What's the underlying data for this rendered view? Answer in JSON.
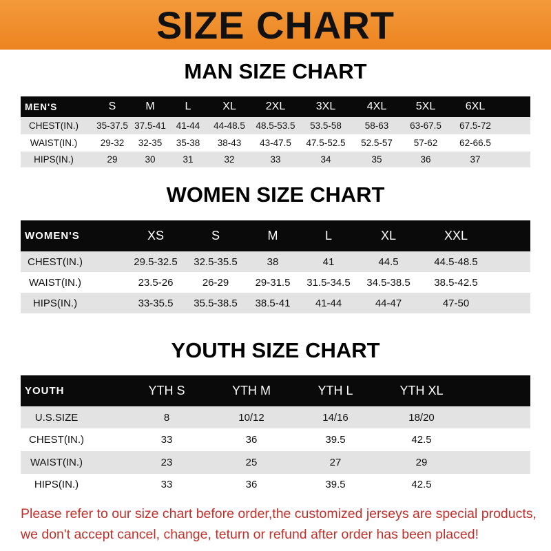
{
  "banner": {
    "title": "SIZE CHART",
    "color": "#ec8420"
  },
  "men": {
    "title": "MAN SIZE CHART",
    "header": [
      "MEN'S",
      "S",
      "M",
      "L",
      "XL",
      "2XL",
      "3XL",
      "4XL",
      "5XL",
      "6XL"
    ],
    "rows": [
      [
        "CHEST(IN.)",
        "35-37.5",
        "37.5-41",
        "41-44",
        "44-48.5",
        "48.5-53.5",
        "53.5-58",
        "58-63",
        "63-67.5",
        "67.5-72"
      ],
      [
        "WAIST(IN.)",
        "29-32",
        "32-35",
        "35-38",
        "38-43",
        "43-47.5",
        "47.5-52.5",
        "52.5-57",
        "57-62",
        "62-66.5"
      ],
      [
        "HIPS(IN.)",
        "29",
        "30",
        "31",
        "32",
        "33",
        "34",
        "35",
        "36",
        "37"
      ]
    ]
  },
  "women": {
    "title": "WOMEN SIZE CHART",
    "header": [
      "WOMEN'S",
      "XS",
      "S",
      "M",
      "L",
      "XL",
      "XXL"
    ],
    "rows": [
      [
        "CHEST(IN.)",
        "29.5-32.5",
        "32.5-35.5",
        "38",
        "41",
        "44.5",
        "44.5-48.5"
      ],
      [
        "WAIST(IN.)",
        "23.5-26",
        "26-29",
        "29-31.5",
        "31.5-34.5",
        "34.5-38.5",
        "38.5-42.5"
      ],
      [
        "HIPS(IN.)",
        "33-35.5",
        "35.5-38.5",
        "38.5-41",
        "41-44",
        "44-47",
        "47-50"
      ]
    ]
  },
  "youth": {
    "title": "YOUTH SIZE CHART",
    "header": [
      "YOUTH",
      "YTH S",
      "YTH M",
      "YTH L",
      "YTH XL"
    ],
    "rows": [
      [
        "U.S.SIZE",
        "8",
        "10/12",
        "14/16",
        "18/20"
      ],
      [
        "CHEST(IN.)",
        "33",
        "36",
        "39.5",
        "42.5"
      ],
      [
        "WAIST(IN.)",
        "23",
        "25",
        "27",
        "29"
      ],
      [
        "HIPS(IN.)",
        "33",
        "36",
        "39.5",
        "42.5"
      ]
    ]
  },
  "note": {
    "line1": "Please refer to our size chart before order,the customized jerseys are special products,",
    "line2": "we don't accept cancel, change, teturn or refund after order has been placed!",
    "color": "#c0302a"
  }
}
